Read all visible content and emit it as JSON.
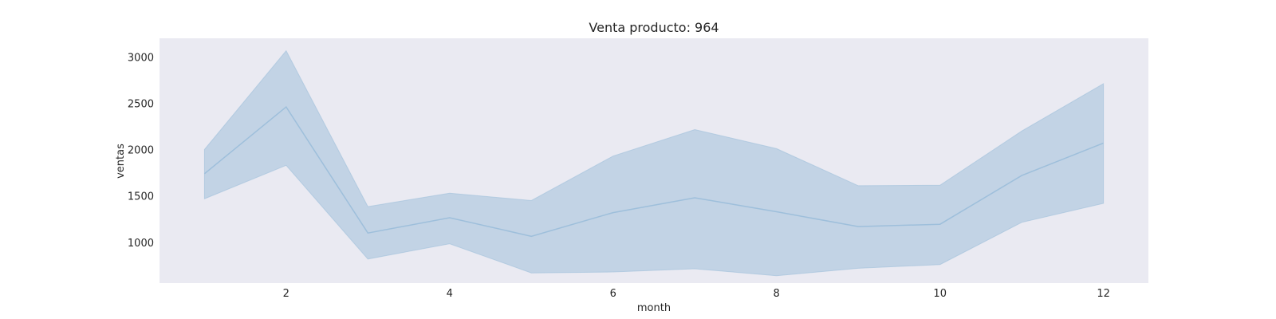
{
  "chart_data": {
    "type": "line",
    "title": "Venta producto: 964",
    "xlabel": "month",
    "ylabel": "ventas",
    "xlim": [
      0.45,
      12.55
    ],
    "ylim": [
      560,
      3200
    ],
    "xticks": [
      2,
      4,
      6,
      8,
      10,
      12
    ],
    "yticks": [
      1000,
      1500,
      2000,
      2500,
      3000
    ],
    "grid": false,
    "colors": {
      "plot_bg": "#eaeaf2",
      "line": "#9ebfdb",
      "band": "#c2d3e5"
    },
    "series": [
      {
        "x": [
          1,
          2,
          3,
          4,
          5,
          6,
          7,
          8,
          9,
          10,
          11,
          12
        ],
        "values": [
          1740,
          2460,
          1100,
          1265,
          1065,
          1320,
          1480,
          1330,
          1170,
          1195,
          1720,
          2070
        ],
        "upper": [
          2000,
          3065,
          1385,
          1530,
          1450,
          1930,
          2215,
          2010,
          1610,
          1615,
          2200,
          2710
        ],
        "lower": [
          1470,
          1830,
          820,
          985,
          670,
          680,
          715,
          640,
          720,
          760,
          1215,
          1420
        ]
      }
    ]
  }
}
